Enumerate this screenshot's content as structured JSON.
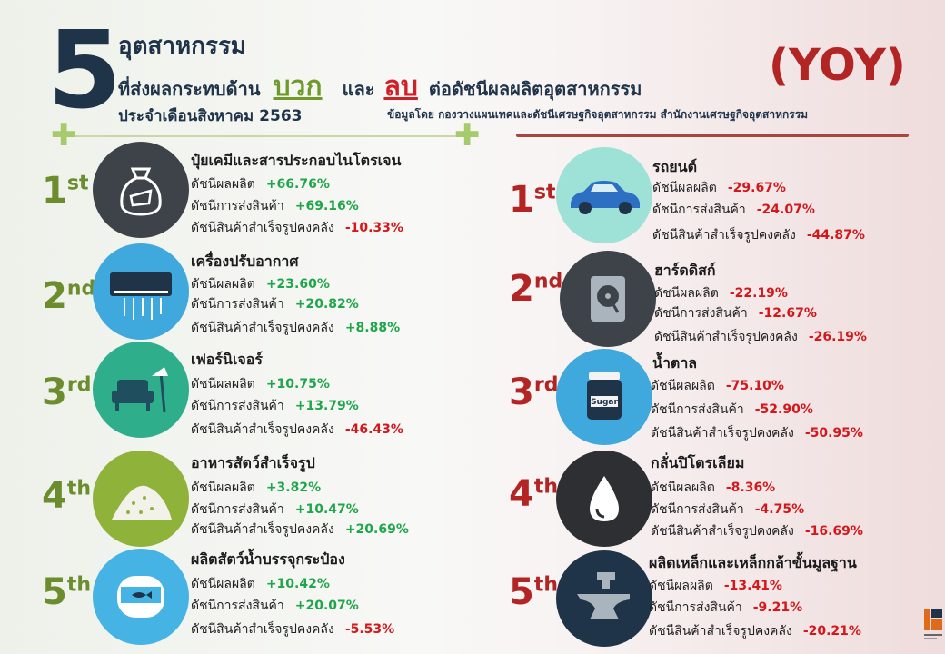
{
  "header": {
    "big_number": "5",
    "line1": "อุตสาหกรรม",
    "line2_a": "ที่ส่งผลกระทบด้าน",
    "positive_word": "บวก",
    "line2_b": "และ",
    "negative_word": "ลบ",
    "line2_c": "ต่อดัชนีผลผลิตอุตสาหกรรม",
    "line3": "ประจำเดือนสิงหาคม  2563",
    "yoy": "(YOY)",
    "source": "ข้อมูลโดย  กองวางแผนเทคและดัชนีเศรษฐกิจอุตสาหกรรม  สำนักงานเศรษฐกิจอุตสาหกรรม"
  },
  "labels": {
    "production": "ดัชนีผลผลิต",
    "shipment": "ดัชนีการส่งสินค้า",
    "inventory": "ดัชนีสินค้าสำเร็จรูปคงคลัง"
  },
  "colors": {
    "positive": "#1fa64a",
    "negative": "#d4171b",
    "left_accent": "#6c8d2e",
    "right_accent": "#b32524"
  },
  "positive_industries": [
    {
      "rank": "1",
      "suffix": "st",
      "icon": "fertilizer-bag-icon",
      "name": "ปุ๋ยเคมีและสารประกอบไนโตรเจน",
      "production": "+66.76%",
      "shipment": "+69.16%",
      "inventory": "-10.33%"
    },
    {
      "rank": "2",
      "suffix": "nd",
      "icon": "air-conditioner-icon",
      "name": "เครื่องปรับอากาศ",
      "production": "+23.60%",
      "shipment": "+20.82%",
      "inventory": "+8.88%"
    },
    {
      "rank": "3",
      "suffix": "rd",
      "icon": "armchair-lamp-icon",
      "name": "เฟอร์นิเจอร์",
      "production": "+10.75%",
      "shipment": "+13.79%",
      "inventory": "-46.43%"
    },
    {
      "rank": "4",
      "suffix": "th",
      "icon": "animal-feed-pile-icon",
      "name": "อาหารสัตว์สำเร็จรูป",
      "production": "+3.82%",
      "shipment": "+10.47%",
      "inventory": "+20.69%"
    },
    {
      "rank": "5",
      "suffix": "th",
      "icon": "canned-fish-icon",
      "name": "ผลิตสัตว์น้ำบรรจุกระป๋อง",
      "production": "+10.42%",
      "shipment": "+20.07%",
      "inventory": "-5.53%"
    }
  ],
  "negative_industries": [
    {
      "rank": "1",
      "suffix": "st",
      "icon": "car-icon",
      "name": "รถยนต์",
      "production": "-29.67%",
      "shipment": "-24.07%",
      "inventory": "-44.87%"
    },
    {
      "rank": "2",
      "suffix": "nd",
      "icon": "hard-disk-icon",
      "name": "ฮาร์ดดิสก์",
      "production": "-22.19%",
      "shipment": "-12.67%",
      "inventory": "-26.19%"
    },
    {
      "rank": "3",
      "suffix": "rd",
      "icon": "sugar-jar-icon",
      "icon_text": "Sugar",
      "name": "น้ำตาล",
      "production": "-75.10%",
      "shipment": "-52.90%",
      "inventory": "-50.95%"
    },
    {
      "rank": "4",
      "suffix": "th",
      "icon": "oil-drop-icon",
      "name": "กลั่นปิโตรเลียม",
      "production": "-8.36%",
      "shipment": "-4.75%",
      "inventory": "-16.69%"
    },
    {
      "rank": "5",
      "suffix": "th",
      "icon": "anvil-icon",
      "name": "ผลิตเหล็กและเหล็กกล้าขั้นมูลฐาน",
      "production": "-13.41%",
      "shipment": "-9.21%",
      "inventory": "-20.21%"
    }
  ]
}
